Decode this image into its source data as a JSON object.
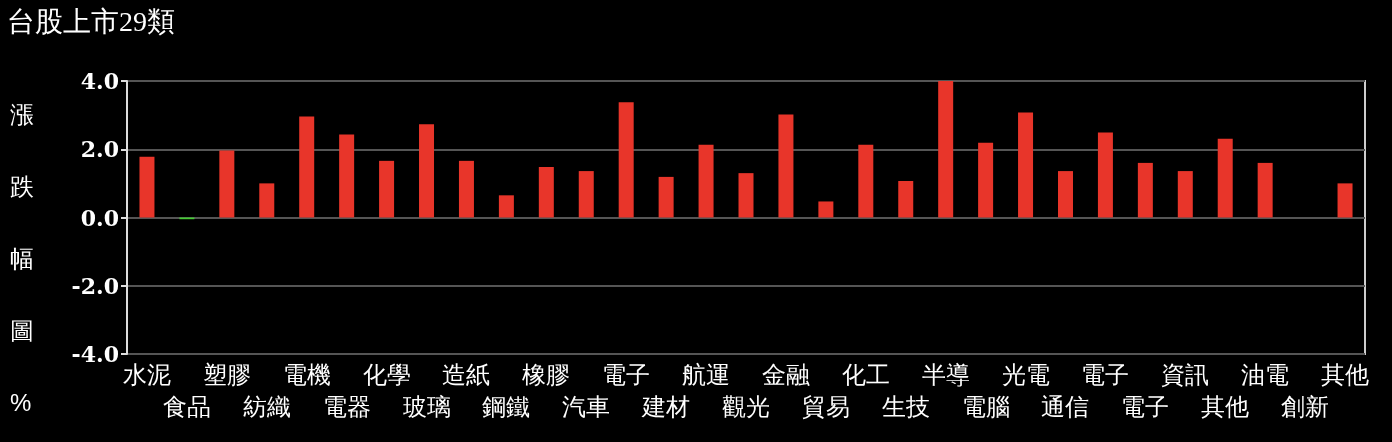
{
  "chart_data": {
    "type": "bar",
    "title": "台股上市29類",
    "ylabel": "漲跌幅圖%",
    "categories": [
      "水泥",
      "食品",
      "塑膠",
      "紡織",
      "電機",
      "電器",
      "化學",
      "玻璃",
      "造紙",
      "鋼鐵",
      "橡膠",
      "汽車",
      "電子",
      "建材",
      "航運",
      "觀光",
      "金融",
      "貿易",
      "化工",
      "生技",
      "半導",
      "電腦",
      "光電",
      "通信",
      "電子",
      "電子",
      "資訊",
      "其他",
      "油電",
      "創新",
      "其他"
    ],
    "values": [
      1.78,
      -0.05,
      1.96,
      1.0,
      2.96,
      2.43,
      1.66,
      2.73,
      1.66,
      0.65,
      1.48,
      1.36,
      3.38,
      1.19,
      2.13,
      1.3,
      3.02,
      0.47,
      2.13,
      1.07,
      4.0,
      2.19,
      3.08,
      1.36,
      2.49,
      1.6,
      1.36,
      2.31,
      1.6,
      null,
      1.0
    ],
    "colors": [
      "#e8352a",
      "#44cc33",
      "#e8352a",
      "#e8352a",
      "#e8352a",
      "#e8352a",
      "#e8352a",
      "#e8352a",
      "#e8352a",
      "#e8352a",
      "#e8352a",
      "#e8352a",
      "#e8352a",
      "#e8352a",
      "#e8352a",
      "#e8352a",
      "#e8352a",
      "#e8352a",
      "#e8352a",
      "#e8352a",
      "#e8352a",
      "#e8352a",
      "#e8352a",
      "#e8352a",
      "#e8352a",
      "#e8352a",
      "#e8352a",
      "#e8352a",
      "#e8352a",
      "#e8352a",
      "#e8352a"
    ],
    "ylim": [
      -4,
      4
    ],
    "yticks": [
      {
        "value": -4,
        "label": "-4.0"
      },
      {
        "value": -2,
        "label": "-2.0"
      },
      {
        "value": 0,
        "label": "0.0"
      },
      {
        "value": 2,
        "label": "2.0"
      },
      {
        "value": 4,
        "label": "4.0"
      }
    ],
    "grid": "y"
  }
}
